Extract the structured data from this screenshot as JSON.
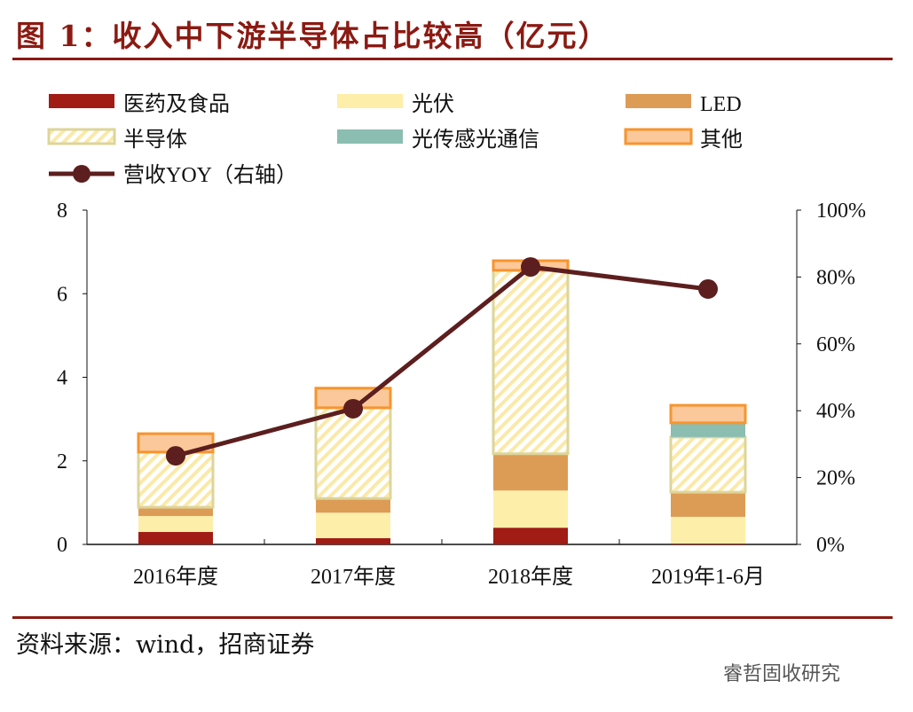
{
  "title": "图 1：收入中下游半导体占比较高（亿元）",
  "source": "资料来源：wind，招商证券",
  "watermark": "睿哲固收研究",
  "chart_data": {
    "type": "bar",
    "stacked": true,
    "categories": [
      "2016年度",
      "2017年度",
      "2018年度",
      "2019年1-6月"
    ],
    "series": [
      {
        "name": "医药及食品",
        "color": "#a01c15",
        "values": [
          0.3,
          0.15,
          0.4,
          0.02
        ]
      },
      {
        "name": "光伏",
        "color": "#fdeeaa",
        "values": [
          0.38,
          0.61,
          0.89,
          0.64
        ]
      },
      {
        "name": "LED",
        "color": "#dd9c55",
        "values": [
          0.21,
          0.34,
          0.88,
          0.59
        ]
      },
      {
        "name": "半导体",
        "color": "#fbe9a8",
        "hatched": true,
        "values": [
          1.32,
          2.17,
          4.39,
          1.32
        ]
      },
      {
        "name": "光传感光通信",
        "color": "#8bbdb1",
        "values": [
          0,
          0,
          0,
          0.34
        ]
      },
      {
        "name": "其他",
        "color": "#fbc89b",
        "values": [
          0.44,
          0.47,
          0.23,
          0.42
        ]
      }
    ],
    "line_series": {
      "name": "营收YOY（右轴）",
      "color": "#5c1e1e",
      "axis": "right",
      "values": [
        26.5,
        40.6,
        83.0,
        76.4
      ]
    },
    "ylim": [
      0,
      8
    ],
    "yticks": [
      "0",
      "2",
      "4",
      "6",
      "8"
    ],
    "y2lim": [
      0,
      100
    ],
    "y2ticks": [
      "0%",
      "20%",
      "40%",
      "60%",
      "80%",
      "100%"
    ],
    "legend": "top"
  }
}
